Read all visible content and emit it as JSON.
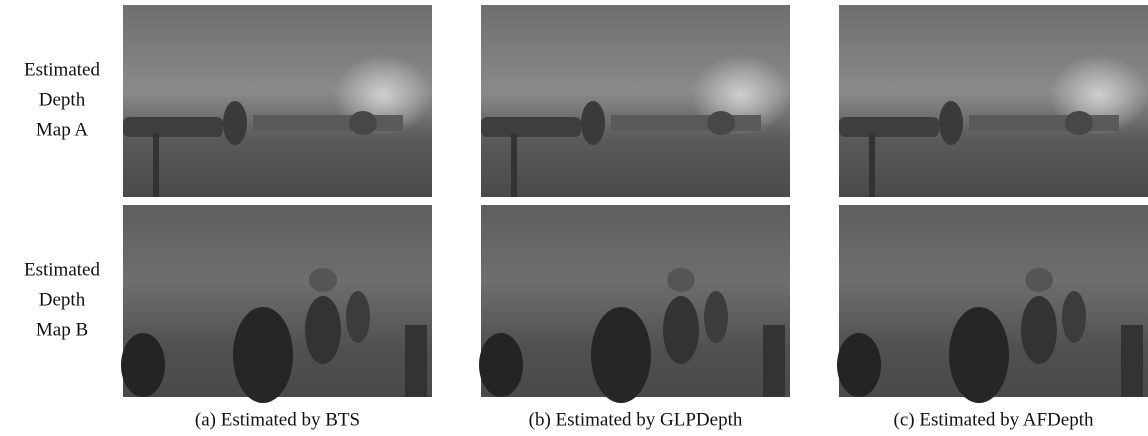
{
  "rows": [
    {
      "label_lines": [
        "Estimated",
        "Depth",
        "Map A"
      ]
    },
    {
      "label_lines": [
        "Estimated",
        "Depth",
        "Map B"
      ]
    }
  ],
  "captions": [
    "(a) Estimated by BTS",
    "(b) Estimated by GLPDepth",
    "(c) Estimated by AFDepth"
  ]
}
